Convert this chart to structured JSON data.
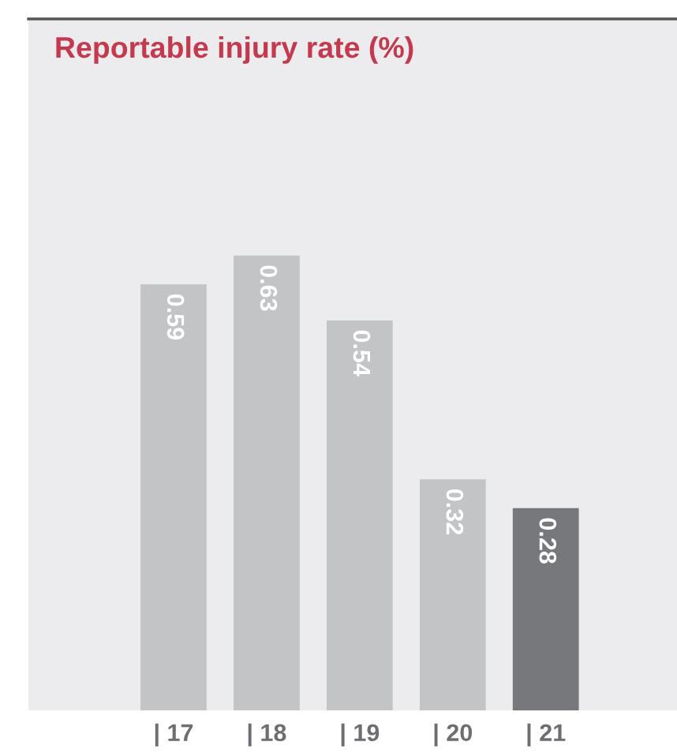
{
  "chart_data": {
    "type": "bar",
    "title": "Reportable injury rate (%)",
    "categories": [
      "| 17",
      "| 18",
      "| 19",
      "| 20",
      "| 21"
    ],
    "values": [
      0.59,
      0.63,
      0.54,
      0.32,
      0.28
    ],
    "colors": [
      "#c3c4c6",
      "#c3c4c6",
      "#c3c4c6",
      "#c3c4c6",
      "#77787b"
    ],
    "data_labels": true,
    "grid": false,
    "legend": false
  }
}
